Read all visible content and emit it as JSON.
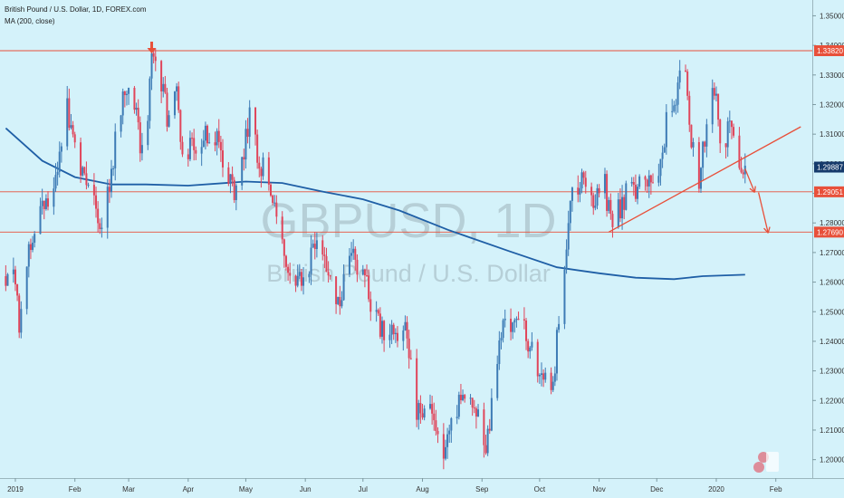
{
  "header": {
    "title": "British Pound / U.S. Dollar, 1D, FOREX.com",
    "indicator": "MA (200, close)"
  },
  "watermark": {
    "symbol": "GBPUSD, 1D",
    "name": "British Pound / U.S. Dollar"
  },
  "colors": {
    "background": "#d4f2fa",
    "up_candle": "#3d7bb5",
    "down_candle": "#e0455a",
    "ma_line": "#1f5fa6",
    "annotation": "#e8503a",
    "current_price_tag": "#153a6b"
  },
  "chart_data": {
    "type": "candlestick",
    "symbol": "GBPUSD",
    "timeframe": "1D",
    "ylim": [
      1.195,
      1.3535
    ],
    "y_ticks": [
      "1.35000",
      "1.34000",
      "1.33000",
      "1.32000",
      "1.31000",
      "1.30000",
      "1.29000",
      "1.28000",
      "1.27000",
      "1.26000",
      "1.25000",
      "1.24000",
      "1.23000",
      "1.22000",
      "1.21000",
      "1.20000"
    ],
    "x_ticks": [
      "2019",
      "Feb",
      "Mar",
      "Apr",
      "May",
      "Jun",
      "Jul",
      "Aug",
      "Sep",
      "Oct",
      "Nov",
      "Dec",
      "2020",
      "Feb"
    ],
    "price_anchors": [
      [
        "2018-12-27",
        1.262
      ],
      [
        "2019-01-02",
        1.26
      ],
      [
        "2019-01-03",
        1.246
      ],
      [
        "2019-01-09",
        1.273
      ],
      [
        "2019-01-15",
        1.287
      ],
      [
        "2019-01-21",
        1.288
      ],
      [
        "2019-01-25",
        1.305
      ],
      [
        "2019-01-28",
        1.32
      ],
      [
        "2019-02-01",
        1.305
      ],
      [
        "2019-02-06",
        1.294
      ],
      [
        "2019-02-11",
        1.291
      ],
      [
        "2019-02-14",
        1.28
      ],
      [
        "2019-02-19",
        1.292
      ],
      [
        "2019-02-26",
        1.325
      ],
      [
        "2019-03-01",
        1.322
      ],
      [
        "2019-03-05",
        1.315
      ],
      [
        "2019-03-07",
        1.306
      ],
      [
        "2019-03-11",
        1.315
      ],
      [
        "2019-03-13",
        1.336
      ],
      [
        "2019-03-18",
        1.328
      ],
      [
        "2019-03-21",
        1.315
      ],
      [
        "2019-03-26",
        1.325
      ],
      [
        "2019-03-29",
        1.303
      ],
      [
        "2019-04-05",
        1.305
      ],
      [
        "2019-04-12",
        1.31
      ],
      [
        "2019-04-18",
        1.305
      ],
      [
        "2019-04-25",
        1.29
      ],
      [
        "2019-04-30",
        1.306
      ],
      [
        "2019-05-03",
        1.317
      ],
      [
        "2019-05-08",
        1.302
      ],
      [
        "2019-05-15",
        1.286
      ],
      [
        "2019-05-24",
        1.265
      ],
      [
        "2019-05-31",
        1.26
      ],
      [
        "2019-06-07",
        1.273
      ],
      [
        "2019-06-12",
        1.268
      ],
      [
        "2019-06-18",
        1.253
      ],
      [
        "2019-06-25",
        1.272
      ],
      [
        "2019-07-02",
        1.26
      ],
      [
        "2019-07-09",
        1.246
      ],
      [
        "2019-07-16",
        1.242
      ],
      [
        "2019-07-23",
        1.246
      ],
      [
        "2019-07-29",
        1.217
      ],
      [
        "2019-08-06",
        1.214
      ],
      [
        "2019-08-12",
        1.205
      ],
      [
        "2019-08-16",
        1.214
      ],
      [
        "2019-08-26",
        1.223
      ],
      [
        "2019-08-29",
        1.217
      ],
      [
        "2019-09-03",
        1.204
      ],
      [
        "2019-09-09",
        1.235
      ],
      [
        "2019-09-13",
        1.247
      ],
      [
        "2019-09-20",
        1.247
      ],
      [
        "2019-09-24",
        1.243
      ],
      [
        "2019-10-01",
        1.229
      ],
      [
        "2019-10-08",
        1.223
      ],
      [
        "2019-10-10",
        1.243
      ],
      [
        "2019-10-14",
        1.265
      ],
      [
        "2019-10-18",
        1.29
      ],
      [
        "2019-10-22",
        1.295
      ],
      [
        "2019-10-28",
        1.285
      ],
      [
        "2019-11-04",
        1.292
      ],
      [
        "2019-11-07",
        1.28
      ],
      [
        "2019-11-12",
        1.286
      ],
      [
        "2019-11-18",
        1.293
      ],
      [
        "2019-11-25",
        1.29
      ],
      [
        "2019-12-02",
        1.295
      ],
      [
        "2019-12-06",
        1.314
      ],
      [
        "2019-12-10",
        1.315
      ],
      [
        "2019-12-12",
        1.33
      ],
      [
        "2019-12-13",
        1.333
      ],
      [
        "2019-12-16",
        1.334
      ],
      [
        "2019-12-18",
        1.31
      ],
      [
        "2019-12-23",
        1.295
      ],
      [
        "2019-12-26",
        1.31
      ],
      [
        "2019-12-31",
        1.325
      ],
      [
        "2020-01-03",
        1.31
      ],
      [
        "2020-01-08",
        1.31
      ],
      [
        "2020-01-13",
        1.299
      ],
      [
        "2020-01-16",
        1.299
      ]
    ],
    "moving_average": {
      "name": "MA (200, close)",
      "points": [
        [
          "2018-12-27",
          1.312
        ],
        [
          "2019-01-15",
          1.301
        ],
        [
          "2019-02-01",
          1.2955
        ],
        [
          "2019-02-20",
          1.293
        ],
        [
          "2019-03-10",
          1.293
        ],
        [
          "2019-04-01",
          1.2926
        ],
        [
          "2019-05-01",
          1.294
        ],
        [
          "2019-05-20",
          1.2935
        ],
        [
          "2019-06-10",
          1.2906
        ],
        [
          "2019-07-01",
          1.288
        ],
        [
          "2019-07-20",
          1.2842
        ],
        [
          "2019-08-15",
          1.2775
        ],
        [
          "2019-09-15",
          1.2705
        ],
        [
          "2019-10-10",
          1.265
        ],
        [
          "2019-11-01",
          1.263
        ],
        [
          "2019-11-20",
          1.2615
        ],
        [
          "2019-12-10",
          1.261
        ],
        [
          "2019-12-25",
          1.262
        ],
        [
          "2020-01-16",
          1.2625
        ]
      ]
    },
    "horizontal_levels": [
      {
        "price": 1.3382,
        "label": "1.33820"
      },
      {
        "price": 1.29051,
        "label": "1.29051"
      },
      {
        "price": 1.2769,
        "label": "1.27690"
      }
    ],
    "current_price": {
      "price": 1.29887,
      "label": "1.29887"
    },
    "trendline": {
      "from": [
        "2019-11-06",
        1.2769
      ],
      "to": [
        "2020-02-14",
        1.3125
      ]
    },
    "marker_arrow": {
      "date": "2019-03-13",
      "direction": "down"
    },
    "projection_arrows": [
      {
        "from": [
          "2020-01-16",
          1.2983
        ],
        "to": [
          "2020-01-21",
          1.2903
        ]
      },
      {
        "from": [
          "2020-01-23",
          1.2903
        ],
        "to": [
          "2020-01-28",
          1.2766
        ]
      }
    ]
  }
}
